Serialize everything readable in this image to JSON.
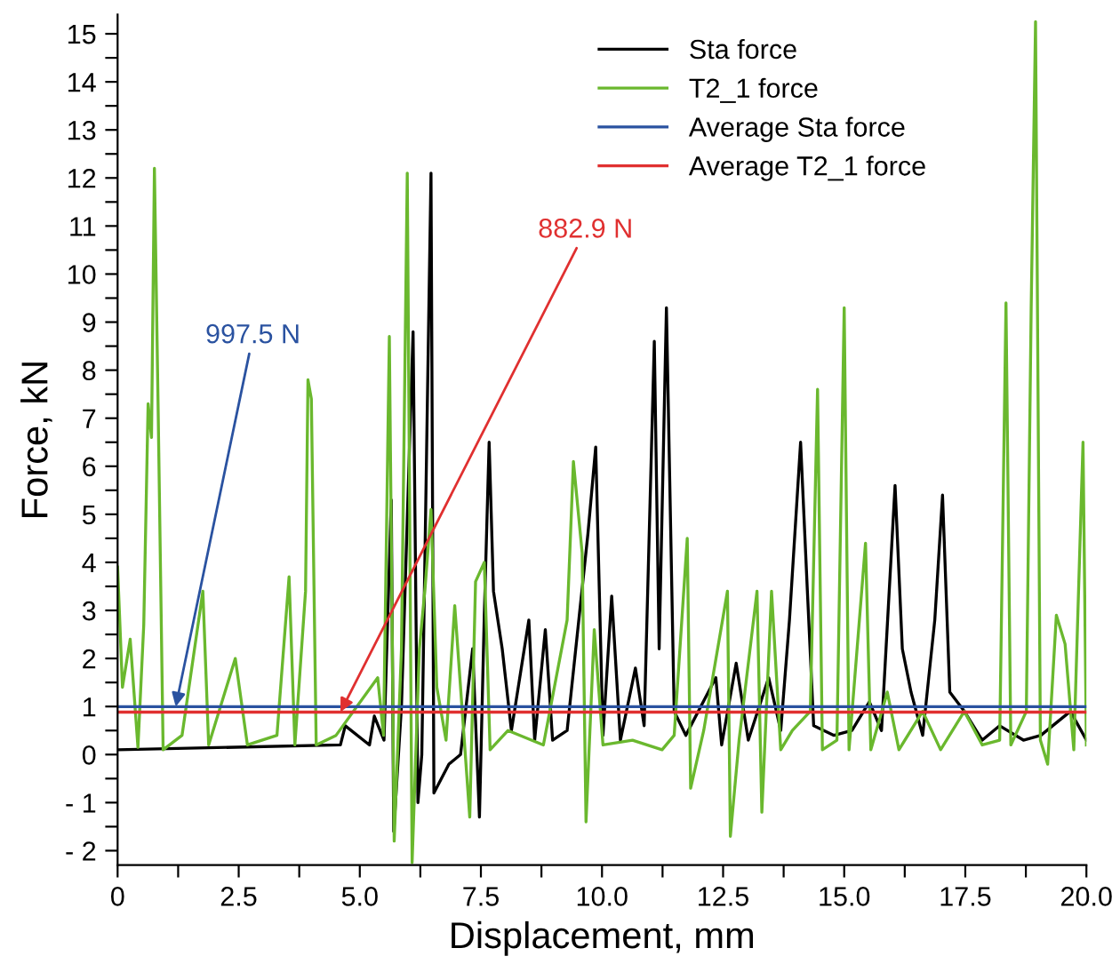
{
  "chart_data": {
    "type": "line",
    "xlabel": "Displacement, mm",
    "ylabel": "Force, kN",
    "xlim": [
      0,
      20
    ],
    "ylim": [
      -2.3,
      15.4
    ],
    "xticks": [
      0,
      {
        "value": 1.25,
        "label": null
      },
      2.5,
      {
        "value": 3.75,
        "label": null
      },
      {
        "value": 5,
        "label": "5.0"
      },
      {
        "value": 6.25,
        "label": null
      },
      7.5,
      {
        "value": 8.75,
        "label": null
      },
      {
        "value": 10,
        "label": "10.0"
      },
      {
        "value": 11.25,
        "label": null
      },
      12.5,
      {
        "value": 13.75,
        "label": null
      },
      {
        "value": 15,
        "label": "15.0"
      },
      {
        "value": 16.25,
        "label": null
      },
      17.5,
      {
        "value": 18.75,
        "label": null
      },
      {
        "value": 20,
        "label": "20.0"
      }
    ],
    "yticks": [
      {
        "value": -2,
        "label": "- 2"
      },
      {
        "value": -1.5,
        "label": null
      },
      {
        "value": -1,
        "label": "- 1"
      },
      {
        "value": -0.5,
        "label": null
      },
      0,
      {
        "value": 0.5,
        "label": null
      },
      1,
      {
        "value": 1.5,
        "label": null
      },
      2,
      {
        "value": 2.5,
        "label": null
      },
      3,
      {
        "value": 3.5,
        "label": null
      },
      4,
      {
        "value": 4.5,
        "label": null
      },
      5,
      {
        "value": 5.5,
        "label": null
      },
      6,
      {
        "value": 6.5,
        "label": null
      },
      7,
      {
        "value": 7.5,
        "label": null
      },
      8,
      {
        "value": 8.5,
        "label": null
      },
      9,
      {
        "value": 9.5,
        "label": null
      },
      10,
      {
        "value": 10.5,
        "label": null
      },
      11,
      {
        "value": 11.5,
        "label": null
      },
      12,
      {
        "value": 12.5,
        "label": null
      },
      13,
      {
        "value": 13.5,
        "label": null
      },
      14,
      {
        "value": 14.5,
        "label": null
      },
      15
    ],
    "grid": false,
    "legend": "top right",
    "series": [
      {
        "name": "Sta force",
        "color": "#000000",
        "x": [
          0,
          4.6,
          4.7,
          5.2,
          5.3,
          5.5,
          5.65,
          5.7,
          5.86,
          6.1,
          6.2,
          6.28,
          6.47,
          6.53,
          6.84,
          7.08,
          7.33,
          7.47,
          7.57,
          7.67,
          7.76,
          7.94,
          8.13,
          8.49,
          8.61,
          8.83,
          8.98,
          9.28,
          9.71,
          9.87,
          10.02,
          10.2,
          10.38,
          10.69,
          10.87,
          11.08,
          11.18,
          11.33,
          11.49,
          11.73,
          12.35,
          12.47,
          12.77,
          13.02,
          13.44,
          13.69,
          13.87,
          14.1,
          14.24,
          14.37,
          14.79,
          15.16,
          15.52,
          15.77,
          16.05,
          16.2,
          16.38,
          16.62,
          16.87,
          17.03,
          17.18,
          17.48,
          17.85,
          18.21,
          18.7,
          19.06,
          19.67,
          20
        ],
        "values": [
          0.1,
          0.2,
          0.6,
          0.2,
          0.8,
          0.3,
          5.3,
          -1.6,
          1.0,
          8.8,
          -1.0,
          0.0,
          12.1,
          -0.8,
          -0.2,
          0.0,
          2.2,
          -1.3,
          2.9,
          6.5,
          3.4,
          2.2,
          0.5,
          2.8,
          0.3,
          2.6,
          0.3,
          0.5,
          4.6,
          6.4,
          0.4,
          3.3,
          0.3,
          1.8,
          0.6,
          8.6,
          2.2,
          9.3,
          0.9,
          0.4,
          1.6,
          0.2,
          1.9,
          0.3,
          1.6,
          0.5,
          2.8,
          6.5,
          3.4,
          0.6,
          0.4,
          0.5,
          1.1,
          0.5,
          5.6,
          2.2,
          1.3,
          0.4,
          2.8,
          5.4,
          1.3,
          0.9,
          0.3,
          0.6,
          0.3,
          0.4,
          0.9,
          0.3
        ]
      },
      {
        "name": "T2_1 force",
        "color": "#6ab82e",
        "x": [
          0,
          0.1,
          0.26,
          0.42,
          0.54,
          0.63,
          0.7,
          0.76,
          0.84,
          0.94,
          1.33,
          1.76,
          1.88,
          2.43,
          2.68,
          3.29,
          3.54,
          3.66,
          3.88,
          3.93,
          4.0,
          4.1,
          4.51,
          5.37,
          5.49,
          5.61,
          5.71,
          5.86,
          5.98,
          6.08,
          6.23,
          6.35,
          6.47,
          6.59,
          6.78,
          6.96,
          7.27,
          7.39,
          7.57,
          7.69,
          8.06,
          8.79,
          9.28,
          9.41,
          9.59,
          9.67,
          9.84,
          10.02,
          10.63,
          11.24,
          11.49,
          11.76,
          11.83,
          12.1,
          12.59,
          12.65,
          12.83,
          13.2,
          13.3,
          13.5,
          13.69,
          13.93,
          14.3,
          14.45,
          14.55,
          14.85,
          15.0,
          15.1,
          15.44,
          15.55,
          15.89,
          16.13,
          16.62,
          16.99,
          17.48,
          17.85,
          18.21,
          18.34,
          18.44,
          18.76,
          18.86,
          18.95,
          19.05,
          19.2,
          19.38,
          19.56,
          19.74,
          19.93,
          20
        ],
        "values": [
          3.9,
          1.4,
          2.4,
          0.15,
          2.7,
          7.3,
          6.6,
          12.2,
          7.0,
          0.1,
          0.4,
          3.4,
          0.2,
          2.0,
          0.2,
          0.4,
          3.7,
          0.2,
          3.4,
          7.8,
          7.4,
          0.2,
          0.4,
          1.6,
          0.4,
          8.7,
          -1.8,
          2.2,
          12.1,
          -2.25,
          2.2,
          3.5,
          5.1,
          1.4,
          0.3,
          3.1,
          -1.3,
          3.6,
          4.0,
          0.1,
          0.5,
          0.2,
          2.8,
          6.1,
          4.2,
          -1.4,
          2.6,
          0.2,
          0.3,
          0.1,
          0.4,
          4.5,
          -0.7,
          0.5,
          3.4,
          -1.7,
          0.3,
          3.4,
          -1.2,
          3.4,
          0.1,
          0.5,
          0.9,
          7.6,
          0.1,
          0.3,
          9.3,
          0.1,
          4.4,
          0.1,
          1.3,
          0.1,
          0.9,
          0.1,
          0.9,
          0.2,
          0.3,
          9.4,
          0.2,
          0.9,
          9.3,
          15.25,
          0.3,
          -0.2,
          2.9,
          2.3,
          0.1,
          6.5,
          0.2
        ]
      },
      {
        "name": "Average Sta force",
        "color": "#2a52a0",
        "x": [
          0,
          20
        ],
        "values": [
          0.9975,
          0.9975
        ]
      },
      {
        "name": "Average T2_1 force",
        "color": "#e03030",
        "x": [
          0,
          20
        ],
        "values": [
          0.8829,
          0.8829
        ]
      }
    ],
    "annotations": [
      {
        "text": "997.5 N",
        "x": 1.2,
        "y": 0.9975
      },
      {
        "text": "882.9 N",
        "x": 4.6,
        "y": 0.8829
      }
    ]
  }
}
